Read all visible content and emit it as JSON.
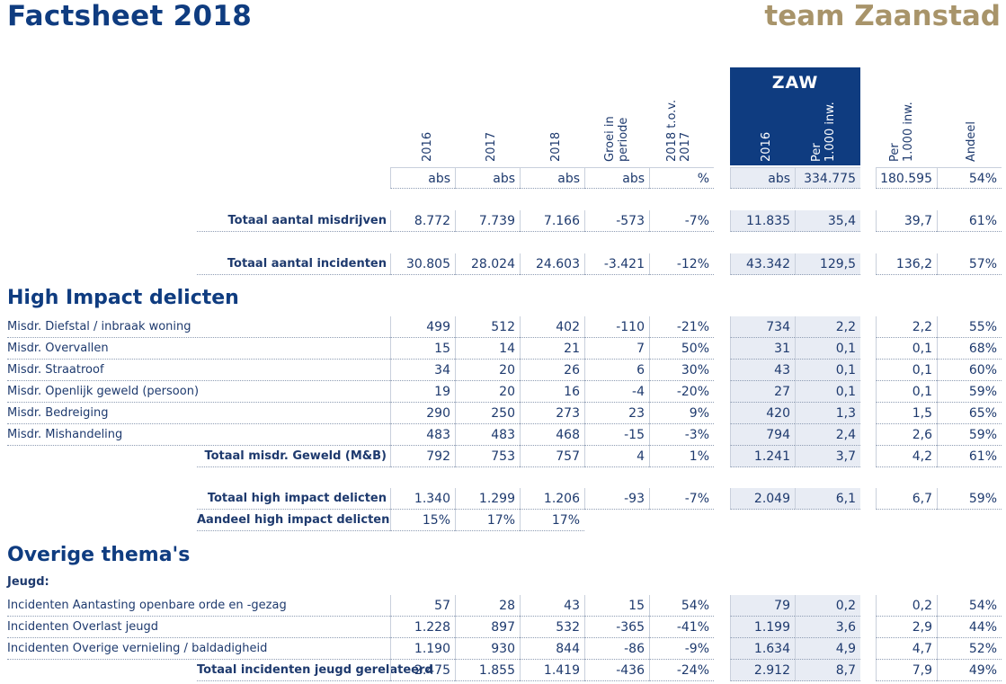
{
  "header": {
    "title": "Factsheet 2018",
    "brand": "team Zaanstad"
  },
  "zaw_label": "ZAW",
  "columns": [
    {
      "head": [
        "2016"
      ],
      "unit": "abs"
    },
    {
      "head": [
        "2017"
      ],
      "unit": "abs"
    },
    {
      "head": [
        "2018"
      ],
      "unit": "abs"
    },
    {
      "head": [
        "Groei in",
        "periode"
      ],
      "unit": "abs"
    },
    {
      "head": [
        "2018 t.o.v.",
        "2017"
      ],
      "unit": "%"
    },
    {
      "head": [
        "2016"
      ],
      "unit": "abs"
    },
    {
      "head": [
        "Per",
        "1.000 inw."
      ],
      "unit": "334.775"
    },
    {
      "head": [
        "Per",
        "1.000 inw."
      ],
      "unit": "180.595"
    },
    {
      "head": [
        "Andeel"
      ],
      "unit": "54%"
    }
  ],
  "sections": {
    "high_impact": "High Impact delicten",
    "overige": "Overige thema's",
    "jeugd": "Jeugd:"
  },
  "rows": [
    {
      "label": "Totaal aantal misdrijven",
      "values": [
        "8.772",
        "7.739",
        "7.166",
        "-573",
        "-7%",
        "11.835",
        "35,4",
        "39,7",
        "61%"
      ]
    },
    {
      "label": "Totaal aantal incidenten",
      "values": [
        "30.805",
        "28.024",
        "24.603",
        "-3.421",
        "-12%",
        "43.342",
        "129,5",
        "136,2",
        "57%"
      ]
    },
    {
      "label": "Misdr. Diefstal / inbraak woning",
      "values": [
        "499",
        "512",
        "402",
        "-110",
        "-21%",
        "734",
        "2,2",
        "2,2",
        "55%"
      ]
    },
    {
      "label": "Misdr. Overvallen",
      "values": [
        "15",
        "14",
        "21",
        "7",
        "50%",
        "31",
        "0,1",
        "0,1",
        "68%"
      ]
    },
    {
      "label": "Misdr. Straatroof",
      "values": [
        "34",
        "20",
        "26",
        "6",
        "30%",
        "43",
        "0,1",
        "0,1",
        "60%"
      ]
    },
    {
      "label": "Misdr. Openlijk geweld (persoon)",
      "values": [
        "19",
        "20",
        "16",
        "-4",
        "-20%",
        "27",
        "0,1",
        "0,1",
        "59%"
      ]
    },
    {
      "label": "Misdr. Bedreiging",
      "values": [
        "290",
        "250",
        "273",
        "23",
        "9%",
        "420",
        "1,3",
        "1,5",
        "65%"
      ]
    },
    {
      "label": "Misdr. Mishandeling",
      "values": [
        "483",
        "483",
        "468",
        "-15",
        "-3%",
        "794",
        "2,4",
        "2,6",
        "59%"
      ]
    },
    {
      "label": "Totaal misdr. Geweld (M&B)",
      "values": [
        "792",
        "753",
        "757",
        "4",
        "1%",
        "1.241",
        "3,7",
        "4,2",
        "61%"
      ]
    },
    {
      "label": "Totaal high impact delicten",
      "values": [
        "1.340",
        "1.299",
        "1.206",
        "-93",
        "-7%",
        "2.049",
        "6,1",
        "6,7",
        "59%"
      ]
    },
    {
      "label": "Aandeel high impact delicten",
      "values": [
        "15%",
        "17%",
        "17%"
      ]
    },
    {
      "label": "Incidenten Aantasting openbare orde en -gezag",
      "values": [
        "57",
        "28",
        "43",
        "15",
        "54%",
        "79",
        "0,2",
        "0,2",
        "54%"
      ]
    },
    {
      "label": "Incidenten Overlast jeugd",
      "values": [
        "1.228",
        "897",
        "532",
        "-365",
        "-41%",
        "1.199",
        "3,6",
        "2,9",
        "44%"
      ]
    },
    {
      "label": "Incidenten Overige vernieling / baldadigheid",
      "values": [
        "1.190",
        "930",
        "844",
        "-86",
        "-9%",
        "1.634",
        "4,9",
        "4,7",
        "52%"
      ]
    },
    {
      "label": "Totaal incidenten jeugd gerelateerd",
      "values": [
        "2.475",
        "1.855",
        "1.419",
        "-436",
        "-24%",
        "2.912",
        "8,7",
        "7,9",
        "49%"
      ]
    }
  ]
}
